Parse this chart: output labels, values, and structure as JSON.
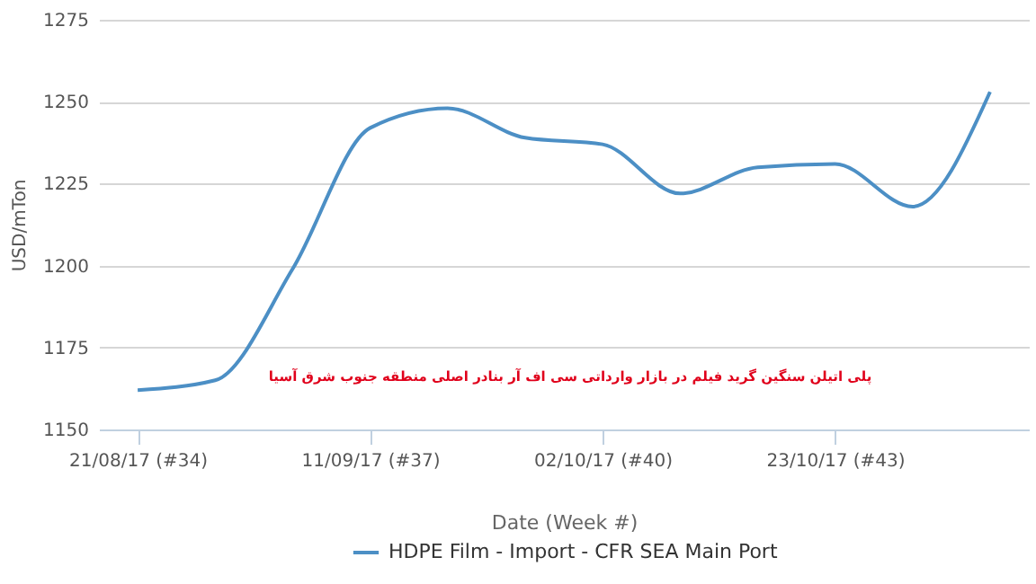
{
  "chart_data": {
    "type": "line",
    "xlabel": "Date (Week #)",
    "ylabel": "USD/mTon",
    "categories": [
      "21/08/17 (#34)",
      null,
      null,
      "11/09/17 (#37)",
      null,
      null,
      "02/10/17 (#40)",
      null,
      null,
      "23/10/17 (#43)",
      null,
      null
    ],
    "series": [
      {
        "name": "HDPE Film - Import - CFR SEA Main Port",
        "color": "#4c8fc5",
        "values": [
          1162,
          1165,
          1199,
          1242,
          1248,
          1239,
          1237,
          1222,
          1230,
          1231,
          1218,
          1253
        ]
      }
    ],
    "ylim": [
      1150,
      1275
    ],
    "yticks": [
      1150,
      1175,
      1200,
      1225,
      1250,
      1275
    ],
    "grid": "y",
    "legend": "bottom",
    "annotations": [
      "پلی اتیلن سنگین گرید فیلم در بازار وارداتی سی اف آر بنادر اصلی منطقه جنوب شرق آسیا"
    ]
  }
}
